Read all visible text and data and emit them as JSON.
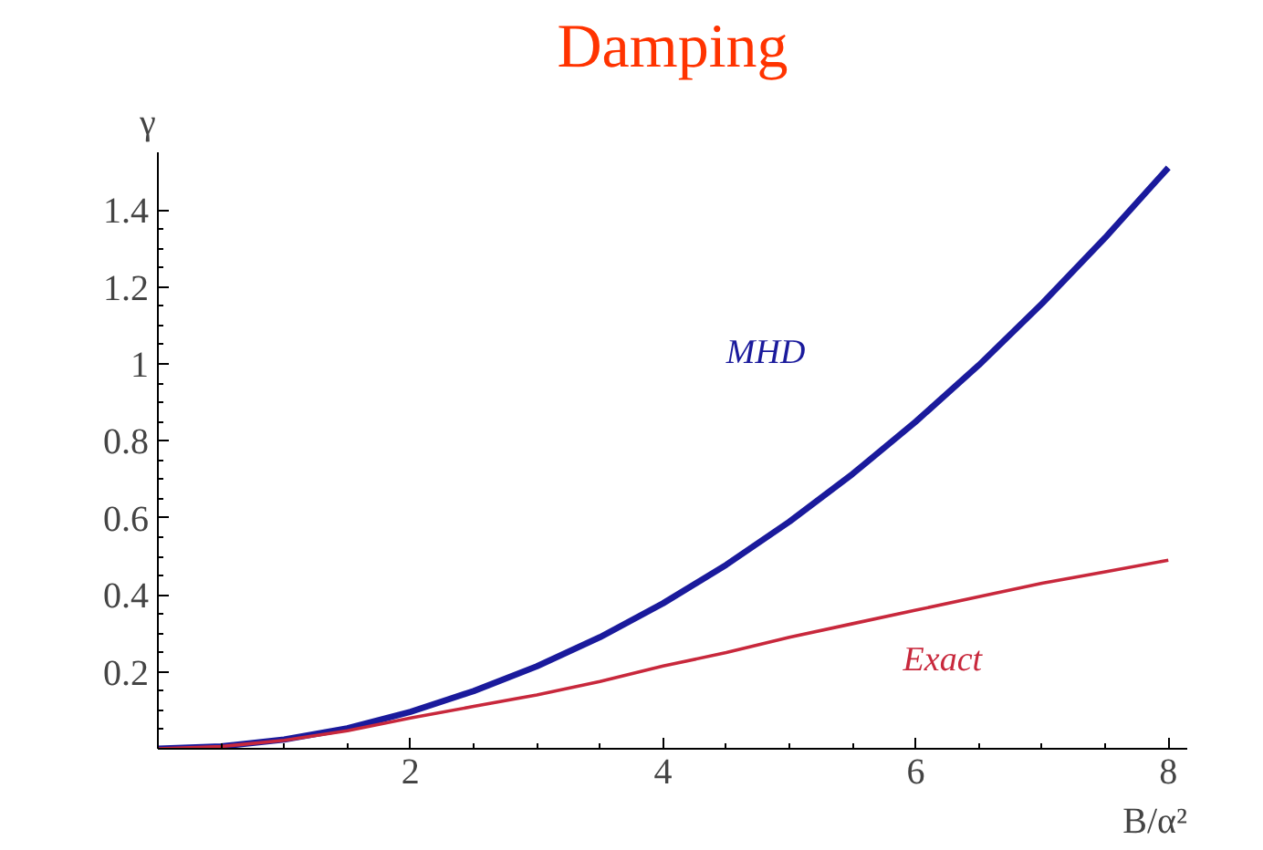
{
  "chart_data": {
    "type": "line",
    "title": "Damping",
    "xlabel": "B/α²",
    "ylabel": "γ",
    "x": [
      0,
      0.5,
      1,
      1.5,
      2,
      2.5,
      3,
      3.5,
      4,
      4.5,
      5,
      5.5,
      6,
      6.5,
      7,
      7.5,
      8
    ],
    "series": [
      {
        "name": "MHD",
        "color": "#1a1a9c",
        "values": [
          0,
          0.006,
          0.024,
          0.053,
          0.096,
          0.15,
          0.214,
          0.29,
          0.378,
          0.478,
          0.59,
          0.714,
          0.85,
          0.997,
          1.157,
          1.328,
          1.51
        ]
      },
      {
        "name": "Exact",
        "color": "#c8283c",
        "values": [
          0,
          0.006,
          0.022,
          0.047,
          0.08,
          0.11,
          0.14,
          0.175,
          0.215,
          0.25,
          0.29,
          0.325,
          0.36,
          0.395,
          0.43,
          0.46,
          0.49
        ]
      }
    ],
    "xlim": [
      0,
      8.15
    ],
    "ylim": [
      0,
      1.55
    ],
    "xticks": [
      2,
      4,
      6,
      8
    ],
    "yticks": [
      0.2,
      0.4,
      0.6,
      0.8,
      1,
      1.2,
      1.4
    ],
    "grid": false,
    "marker": "none",
    "line_style": "solid"
  }
}
